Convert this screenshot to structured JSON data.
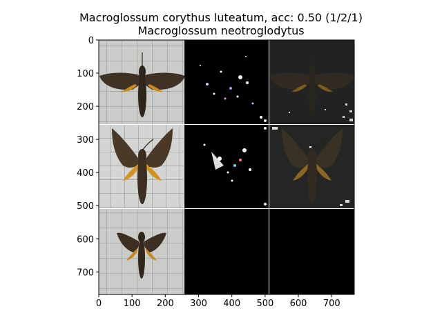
{
  "title_line1": "Macroglossum corythus luteatum, acc: 0.50 (1/2/1)",
  "title_line2": "Macroglossum neotroglodytus",
  "chart_data": {
    "type": "image",
    "title": "Macroglossum corythus luteatum, acc: 0.50 (1/2/1)\nMacroglossum neotroglodytus",
    "xlim": [
      0,
      768
    ],
    "ylim": [
      768,
      0
    ],
    "xticks": [
      0,
      100,
      200,
      300,
      400,
      500,
      600,
      700
    ],
    "yticks": [
      0,
      100,
      200,
      300,
      400,
      500,
      600,
      700
    ],
    "grid": "3x3 image mosaic: column 1 = moth photographs on grid paper, column 2 = saliency maps, column 3 = masked photographs; bottom row columns 2 and 3 are black",
    "colors": {
      "photo_bg": "#c8cbc8",
      "grid_line": "#8e918e",
      "black_panel": "#000000",
      "separator": "#ffffff",
      "moth_body": "#3d2f22",
      "moth_orange": "#c98a1d"
    }
  }
}
